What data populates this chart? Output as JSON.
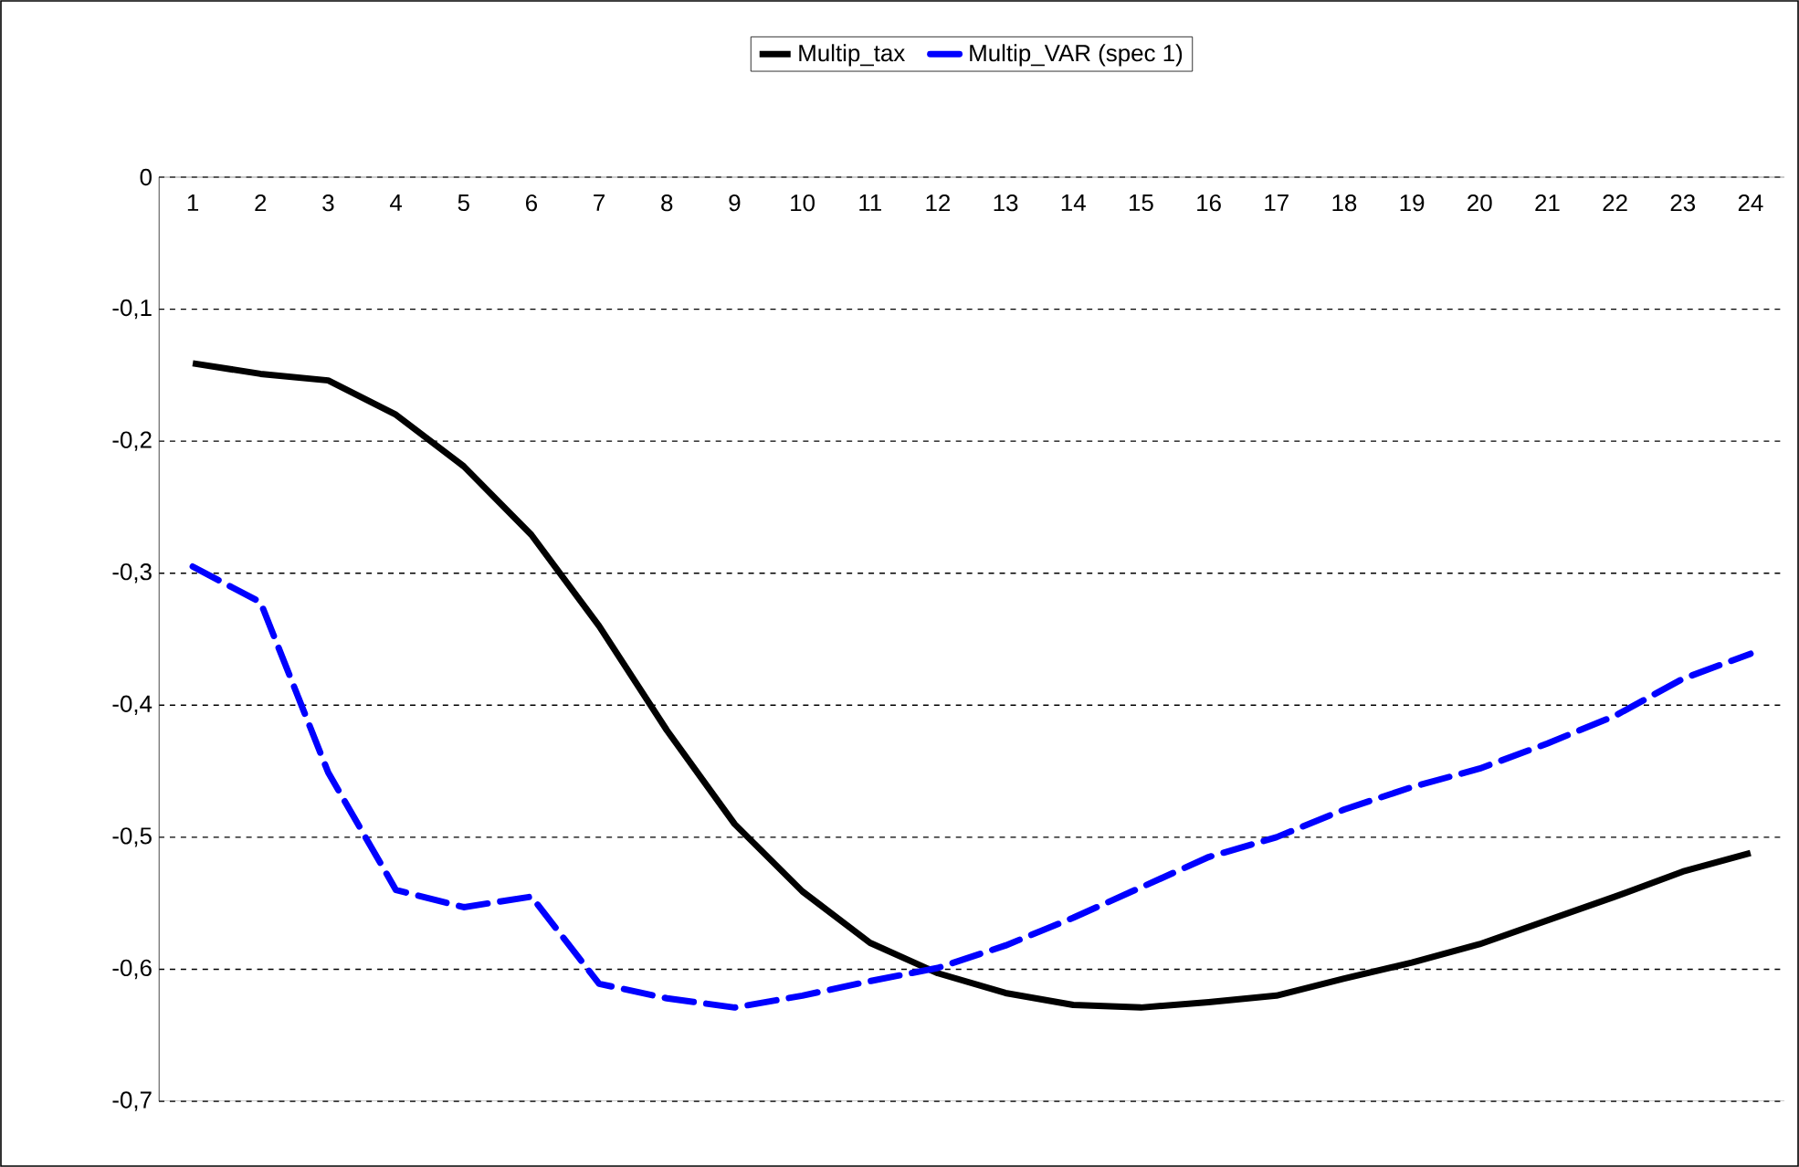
{
  "chart_data": {
    "type": "line",
    "categories": [
      "1",
      "2",
      "3",
      "4",
      "5",
      "6",
      "7",
      "8",
      "9",
      "10",
      "11",
      "12",
      "13",
      "14",
      "15",
      "16",
      "17",
      "18",
      "19",
      "20",
      "21",
      "22",
      "23",
      "24"
    ],
    "series": [
      {
        "name": "Multip_tax",
        "color": "#000000",
        "line_style": "solid",
        "values": [
          -0.141,
          -0.149,
          -0.154,
          -0.18,
          -0.219,
          -0.271,
          -0.34,
          -0.419,
          -0.49,
          -0.541,
          -0.58,
          -0.603,
          -0.618,
          -0.627,
          -0.629,
          -0.625,
          -0.62,
          -0.607,
          -0.595,
          -0.581,
          -0.563,
          -0.545,
          -0.526,
          -0.512
        ]
      },
      {
        "name": "Multip_VAR (spec 1)",
        "color": "#0000ff",
        "line_style": "dashed",
        "values": [
          -0.295,
          -0.322,
          -0.451,
          -0.54,
          -0.553,
          -0.545,
          -0.611,
          -0.622,
          -0.629,
          -0.62,
          -0.609,
          -0.599,
          -0.582,
          -0.561,
          -0.538,
          -0.515,
          -0.5,
          -0.479,
          -0.462,
          -0.448,
          -0.429,
          -0.408,
          -0.38,
          -0.361
        ]
      }
    ],
    "ylim": [
      -0.7,
      0
    ],
    "yticks": [
      {
        "value": 0,
        "label": "0"
      },
      {
        "value": -0.1,
        "label": "-0,1"
      },
      {
        "value": -0.2,
        "label": "-0,2"
      },
      {
        "value": -0.3,
        "label": "-0,3"
      },
      {
        "value": -0.4,
        "label": "-0,4"
      },
      {
        "value": -0.5,
        "label": "-0,5"
      },
      {
        "value": -0.6,
        "label": "-0,6"
      },
      {
        "value": -0.7,
        "label": "-0,7"
      }
    ],
    "grid": "y",
    "legend": "top",
    "marker": "none"
  }
}
